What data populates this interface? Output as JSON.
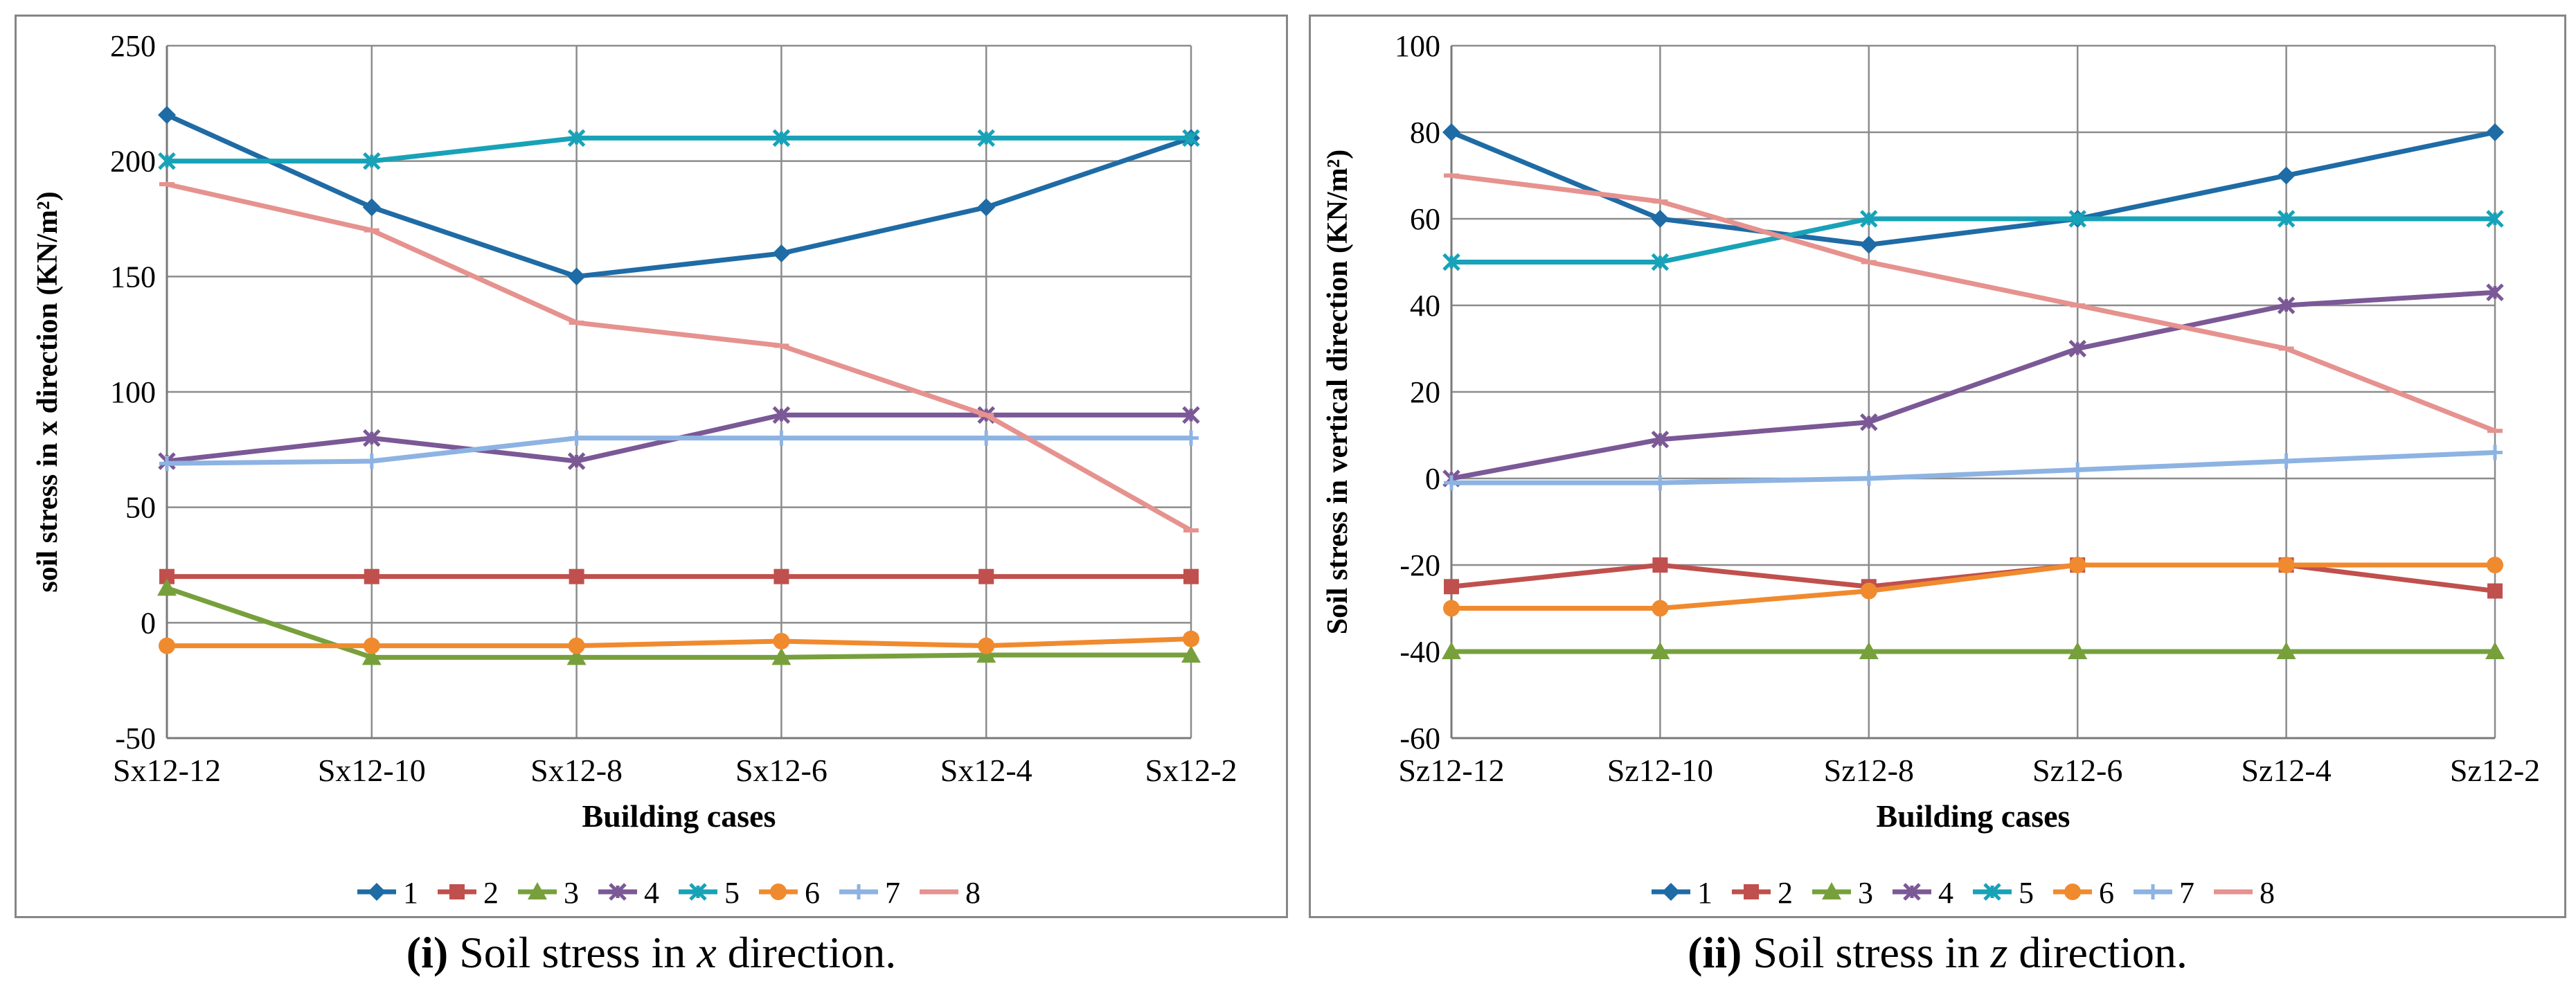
{
  "chart_data": [
    {
      "type": "line",
      "categories": [
        "Sx12-12",
        "Sx12-10",
        "Sx12-8",
        "Sx12-6",
        "Sx12-4",
        "Sx12-2"
      ],
      "xlabel": "Building cases",
      "ylabel": "soil stress in x direction (KN/m²)",
      "ylim": [
        -50,
        250
      ],
      "yticks": [
        -50,
        0,
        50,
        100,
        150,
        200,
        250
      ],
      "grid": true,
      "legend": "bottom",
      "series": [
        {
          "name": "1",
          "values": [
            220,
            180,
            150,
            160,
            180,
            210
          ],
          "color": "#1F6BA5",
          "marker": "diamond"
        },
        {
          "name": "2",
          "values": [
            20,
            20,
            20,
            20,
            20,
            20
          ],
          "color": "#C0504D",
          "marker": "square"
        },
        {
          "name": "3",
          "values": [
            15,
            -15,
            -15,
            -15,
            -14,
            -14
          ],
          "color": "#77A03C",
          "marker": "triangle"
        },
        {
          "name": "4",
          "values": [
            70,
            80,
            70,
            90,
            90,
            90
          ],
          "color": "#7B5896",
          "marker": "xstar"
        },
        {
          "name": "5",
          "values": [
            200,
            200,
            210,
            210,
            210,
            210
          ],
          "color": "#18A2B8",
          "marker": "xstar"
        },
        {
          "name": "6",
          "values": [
            -10,
            -10,
            -10,
            -8,
            -10,
            -7
          ],
          "color": "#F08A2E",
          "marker": "circle"
        },
        {
          "name": "7",
          "values": [
            69,
            70,
            80,
            80,
            80,
            80
          ],
          "color": "#8DB3E2",
          "marker": "plus"
        },
        {
          "name": "8",
          "values": [
            190,
            170,
            130,
            120,
            90,
            40
          ],
          "color": "#E6928F",
          "marker": "dash"
        }
      ]
    },
    {
      "type": "line",
      "categories": [
        "Sz12-12",
        "Sz12-10",
        "Sz12-8",
        "Sz12-6",
        "Sz12-4",
        "Sz12-2"
      ],
      "xlabel": "Building cases",
      "ylabel": "Soil stress in vertical direction (KN/m²)",
      "ylim": [
        -60,
        100
      ],
      "yticks": [
        -60,
        -40,
        -20,
        0,
        20,
        40,
        60,
        80,
        100
      ],
      "grid": true,
      "legend": "bottom",
      "series": [
        {
          "name": "1",
          "values": [
            80,
            60,
            54,
            60,
            70,
            80
          ],
          "color": "#1F6BA5",
          "marker": "diamond"
        },
        {
          "name": "2",
          "values": [
            -25,
            -20,
            -25,
            -20,
            -20,
            -26
          ],
          "color": "#C0504D",
          "marker": "square"
        },
        {
          "name": "3",
          "values": [
            -40,
            -40,
            -40,
            -40,
            -40,
            -40
          ],
          "color": "#77A03C",
          "marker": "triangle"
        },
        {
          "name": "4",
          "values": [
            0,
            9,
            13,
            30,
            40,
            43
          ],
          "color": "#7B5896",
          "marker": "xstar"
        },
        {
          "name": "5",
          "values": [
            50,
            50,
            60,
            60,
            60,
            60
          ],
          "color": "#18A2B8",
          "marker": "xstar"
        },
        {
          "name": "6",
          "values": [
            -30,
            -30,
            -26,
            -20,
            -20,
            -20
          ],
          "color": "#F08A2E",
          "marker": "circle"
        },
        {
          "name": "7",
          "values": [
            -1,
            -1,
            0,
            2,
            4,
            6
          ],
          "color": "#8DB3E2",
          "marker": "plus"
        },
        {
          "name": "8",
          "values": [
            70,
            64,
            50,
            40,
            30,
            11
          ],
          "color": "#E6928F",
          "marker": "dash"
        }
      ]
    }
  ],
  "captions": [
    {
      "label": "(i)",
      "text_before": " Soil stress in ",
      "var": "x",
      "text_after": " direction."
    },
    {
      "label": "(ii)",
      "text_before": " Soil stress in ",
      "var": "z",
      "text_after": " direction."
    }
  ]
}
